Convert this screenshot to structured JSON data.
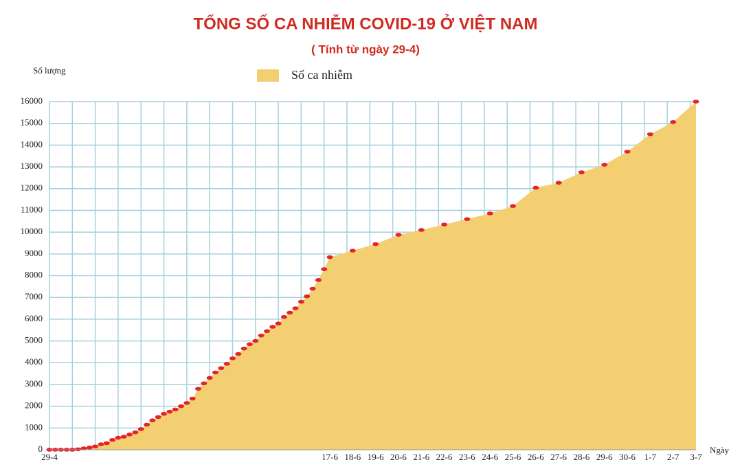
{
  "chart_data": {
    "type": "area",
    "title": "TỔNG SỐ CA NHIỄM COVID-19 Ở VIỆT NAM",
    "subtitle": "( Tính từ ngày 29-4)",
    "y_label": "Số lượng",
    "x_label": "Ngày",
    "categories": [
      "29-4",
      null,
      null,
      null,
      null,
      null,
      null,
      null,
      null,
      null,
      null,
      null,
      null,
      null,
      null,
      null,
      null,
      null,
      null,
      null,
      null,
      null,
      null,
      null,
      null,
      null,
      null,
      null,
      null,
      null,
      null,
      null,
      null,
      null,
      null,
      null,
      null,
      null,
      null,
      null,
      null,
      null,
      null,
      null,
      null,
      null,
      null,
      null,
      null,
      "17-6",
      "18-6",
      "19-6",
      "20-6",
      "21-6",
      "22-6",
      "23-6",
      "24-6",
      "25-6",
      "26-6",
      "27-6",
      "28-6",
      "29-6",
      "30-6",
      "1-7",
      "2-7",
      "3-7"
    ],
    "series": [
      {
        "name": "Số ca nhiễm",
        "color": "#f3cf72",
        "marker_color": "#e3242b",
        "values": [
          0,
          0,
          0,
          0,
          0,
          20,
          60,
          100,
          150,
          250,
          300,
          450,
          550,
          600,
          700,
          800,
          950,
          1150,
          1350,
          1500,
          1650,
          1750,
          1850,
          2000,
          2150,
          2350,
          2800,
          3050,
          3300,
          3550,
          3750,
          3950,
          4200,
          4400,
          4650,
          4850,
          5000,
          5250,
          5450,
          5650,
          5800,
          6100,
          6300,
          6500,
          6800,
          7050,
          7400,
          7800,
          8300,
          8850,
          9150,
          9450,
          9880,
          10100,
          10350,
          10600,
          10860,
          11200,
          12040,
          12270,
          12750,
          13100,
          13700,
          14500,
          15060,
          16000
        ]
      }
    ],
    "ylim": [
      0,
      16000
    ],
    "yticks": [
      0,
      1000,
      2000,
      3000,
      4000,
      5000,
      6000,
      7000,
      8000,
      9000,
      10000,
      11000,
      12000,
      13000,
      14000,
      15000,
      16000
    ],
    "grid": true
  }
}
